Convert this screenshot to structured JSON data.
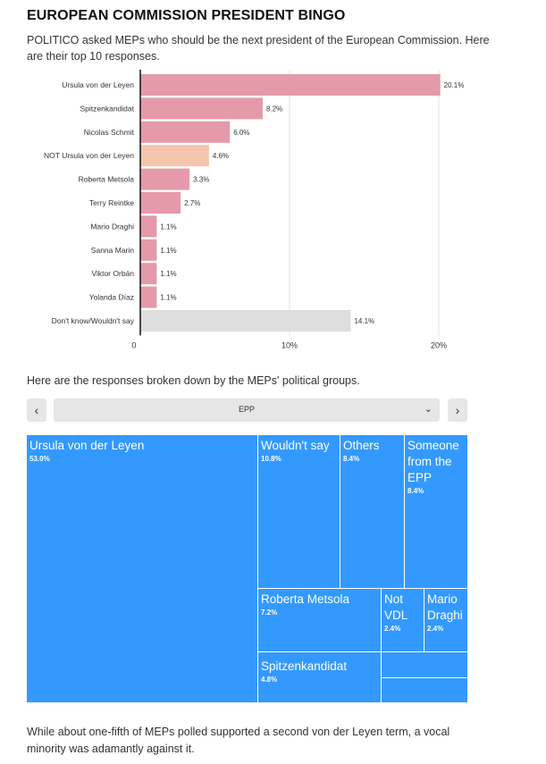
{
  "page": {
    "title": "EUROPEAN COMMISSION PRESIDENT BINGO",
    "subtitle": "POLITICO asked MEPs who should be the next president of the European Commission. Here are their top 10 responses.",
    "breakdown_text": "Here are the responses broken down by the MEPs' political groups.",
    "footer": "While about one-fifth of MEPs polled supported a second von der Leyen term, a vocal minority was adamantly against it."
  },
  "colors": {
    "pink": "#e49aa9",
    "peach": "#f5c6ad",
    "grey": "#dedede",
    "tree_blue": "#3399ff"
  },
  "controls": {
    "prev_icon": "‹",
    "next_icon": "›",
    "select_value": "EPP",
    "select_icon": "⌄"
  },
  "chart_data": [
    {
      "type": "bar",
      "orientation": "horizontal",
      "categories": [
        "Ursula von der Leyen",
        "Spitzenkandidat",
        "Nicolas Schmit",
        "NOT Ursula von der Leyen",
        "Roberta Metsola",
        "Terry Reintke",
        "Mario Draghi",
        "Sanna Marin",
        "Viktor Orbán",
        "Yolanda Díaz",
        "Don't know/Wouldn't say"
      ],
      "values": [
        20.1,
        8.2,
        6.0,
        4.6,
        3.3,
        2.7,
        1.1,
        1.1,
        1.1,
        1.1,
        14.1
      ],
      "value_labels": [
        "20.1%",
        "8.2%",
        "6.0%",
        "4.6%",
        "3.3%",
        "2.7%",
        "1.1%",
        "1.1%",
        "1.1%",
        "1.1%",
        "14.1%"
      ],
      "bar_colors": [
        "pink",
        "pink",
        "pink",
        "peach",
        "pink",
        "pink",
        "pink",
        "pink",
        "pink",
        "pink",
        "grey"
      ],
      "xticks": [
        0,
        10,
        20
      ],
      "xtick_labels": [
        "0",
        "10%",
        "20%"
      ],
      "xlim": [
        0,
        20.1
      ],
      "grid": true
    },
    {
      "type": "treemap",
      "group": "EPP",
      "items": [
        {
          "label": "Ursula von der Leyen",
          "value": 53.0,
          "value_label": "53.0%"
        },
        {
          "label": "Wouldn't say",
          "value": 10.8,
          "value_label": "10.8%"
        },
        {
          "label": "Others",
          "value": 8.4,
          "value_label": "8.4%"
        },
        {
          "label": "Someone from the EPP",
          "value": 8.4,
          "value_label": "8.4%"
        },
        {
          "label": "Roberta Metsola",
          "value": 7.2,
          "value_label": "7.2%"
        },
        {
          "label": "Not VDL",
          "value": 2.4,
          "value_label": "2.4%"
        },
        {
          "label": "Mario Draghi",
          "value": 2.4,
          "value_label": "2.4%"
        },
        {
          "label": "Spitzenkandidat",
          "value": 4.8,
          "value_label": "4.8%"
        }
      ]
    }
  ]
}
